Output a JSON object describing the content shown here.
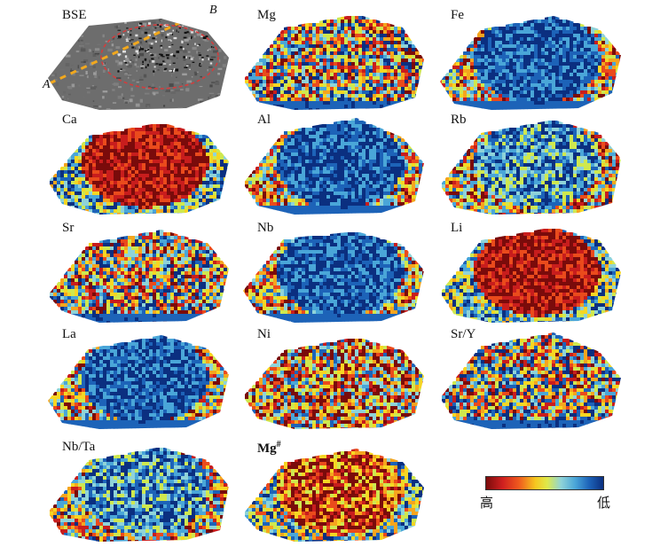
{
  "panels": [
    {
      "id": "bse",
      "label": "BSE",
      "mode": "bse",
      "col": 0,
      "row": 0,
      "pattern": "bse"
    },
    {
      "id": "mg",
      "label": "Mg",
      "mode": "map",
      "col": 1,
      "row": 0,
      "pattern": "mixed"
    },
    {
      "id": "fe",
      "label": "Fe",
      "mode": "map",
      "col": 2,
      "row": 0,
      "pattern": "low_center"
    },
    {
      "id": "ca",
      "label": "Ca",
      "mode": "map",
      "col": 0,
      "row": 1,
      "pattern": "high_center"
    },
    {
      "id": "al",
      "label": "Al",
      "mode": "map",
      "col": 1,
      "row": 1,
      "pattern": "low_center"
    },
    {
      "id": "rb",
      "label": "Rb",
      "mode": "map",
      "col": 2,
      "row": 1,
      "pattern": "low_center_mild"
    },
    {
      "id": "sr",
      "label": "Sr",
      "mode": "map",
      "col": 0,
      "row": 2,
      "pattern": "mixed"
    },
    {
      "id": "nb",
      "label": "Nb",
      "mode": "map",
      "col": 1,
      "row": 2,
      "pattern": "low_center"
    },
    {
      "id": "li",
      "label": "Li",
      "mode": "map",
      "col": 2,
      "row": 2,
      "pattern": "high_center"
    },
    {
      "id": "la",
      "label": "La",
      "mode": "map",
      "col": 0,
      "row": 3,
      "pattern": "low_center"
    },
    {
      "id": "ni",
      "label": "Ni",
      "mode": "map",
      "col": 1,
      "row": 3,
      "pattern": "mixed_high"
    },
    {
      "id": "sry",
      "label": "Sr/Y",
      "mode": "map",
      "col": 2,
      "row": 3,
      "pattern": "mixed"
    },
    {
      "id": "nbta",
      "label": "Nb/Ta",
      "mode": "map",
      "col": 0,
      "row": 4,
      "pattern": "low_center_mild"
    },
    {
      "id": "mgnum",
      "label": "Mg",
      "sup": "#",
      "mode": "map",
      "col": 1,
      "row": 4,
      "pattern": "high_center_mild"
    }
  ],
  "bse_markers": {
    "a": "A",
    "b": "B"
  },
  "colorbar": {
    "high_label": "高",
    "low_label": "低"
  },
  "colors": {
    "ramp": [
      "#7a0b0b",
      "#c81d1d",
      "#ea4b1c",
      "#f5a51e",
      "#f6d623",
      "#cfe84f",
      "#8fd3d8",
      "#4aa6d8",
      "#1d63b8",
      "#0b2f80"
    ],
    "bse_gray": "#6d6d6d",
    "traverse": "#f2a81d",
    "dashed_ellipse": "#d83a3a"
  }
}
